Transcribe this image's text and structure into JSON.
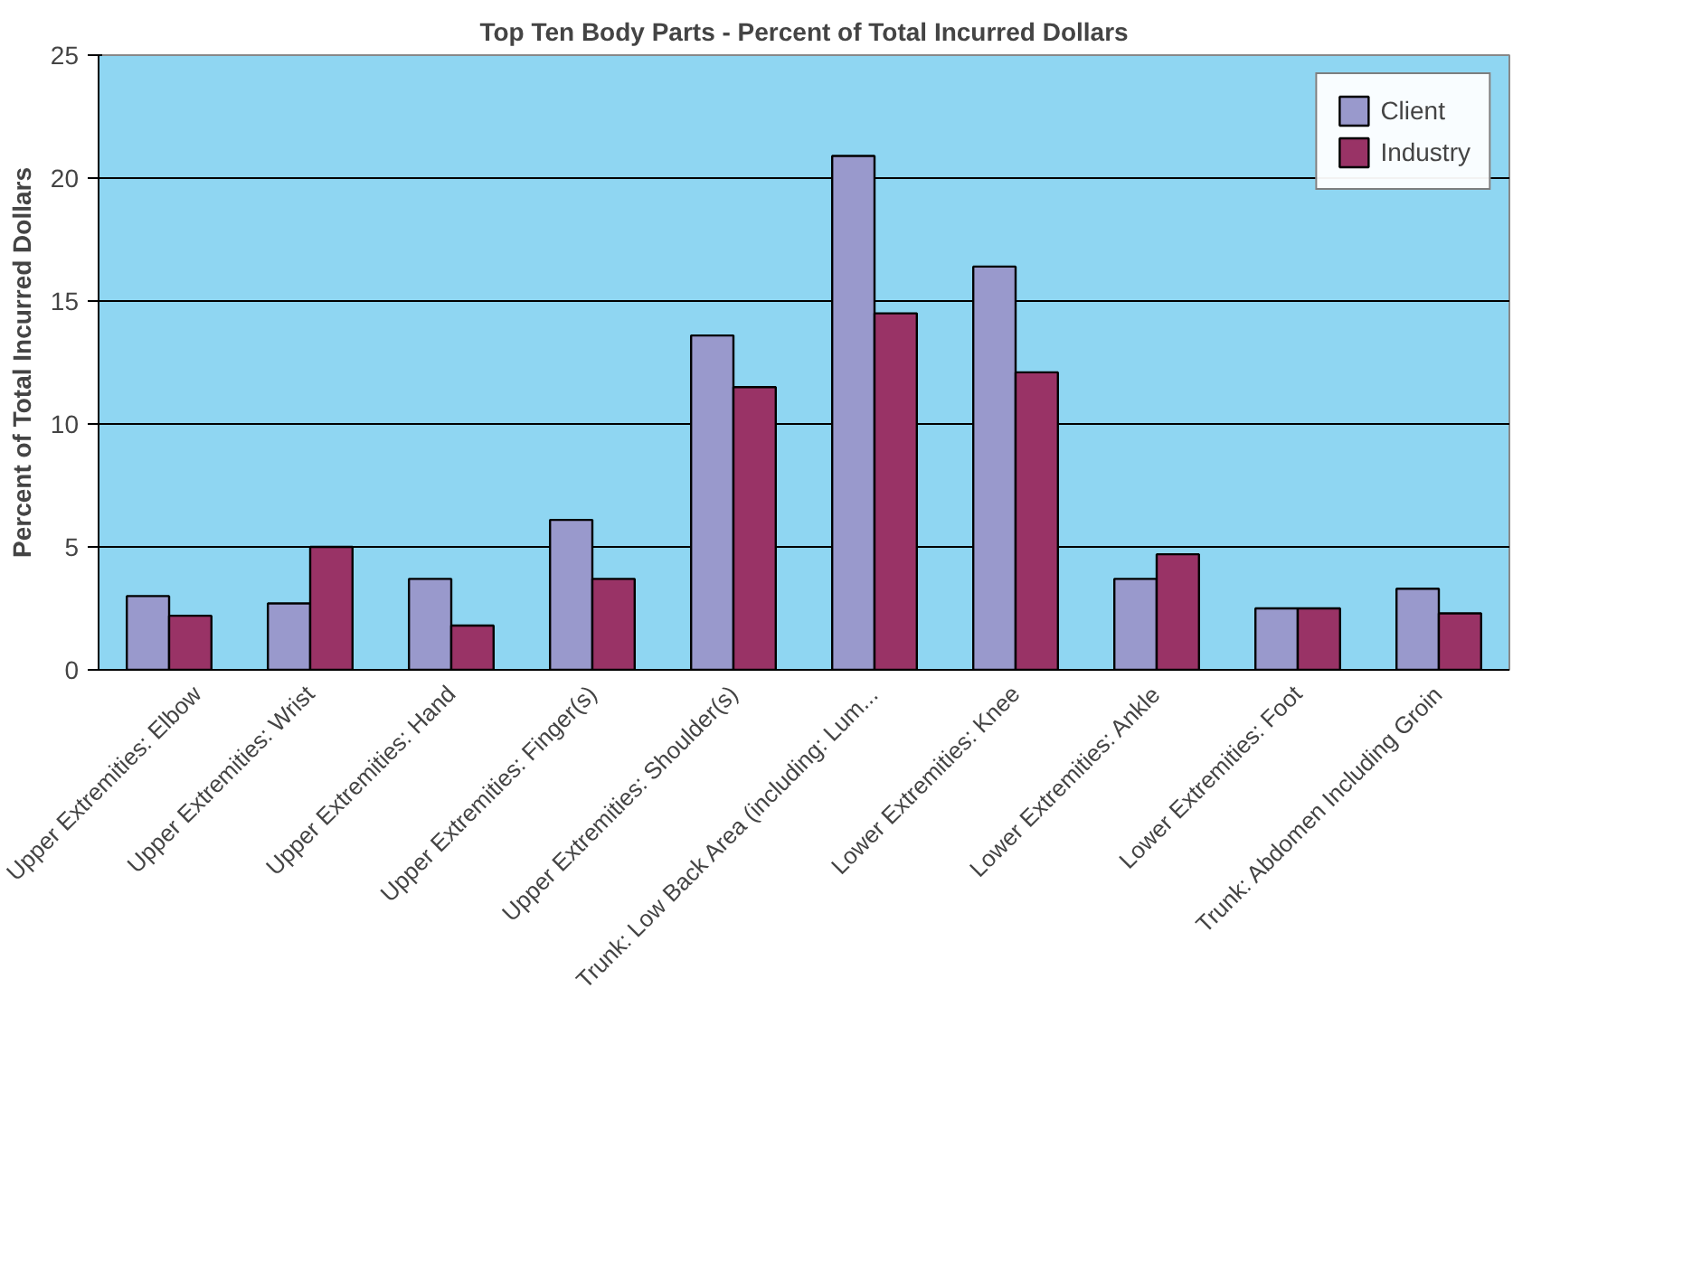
{
  "chart_data": {
    "type": "bar",
    "title": "Top Ten Body Parts - Percent of Total Incurred Dollars",
    "ylabel": "Percent of Total Incurred Dollars",
    "categories": [
      "Upper Extremities: Elbow",
      "Upper Extremities: Wrist",
      "Upper Extremities: Hand",
      "Upper Extremities: Finger(s)",
      "Upper Extremities: Shoulder(s)",
      "Trunk: Low Back Area (including: Lum...",
      "Lower Extremities: Knee",
      "Lower Extremities: Ankle",
      "Lower Extremities: Foot",
      "Trunk: Abdomen Including Groin"
    ],
    "series": [
      {
        "name": "Client",
        "color": "#9999cc",
        "values": [
          3.0,
          2.7,
          3.7,
          6.1,
          13.6,
          20.9,
          16.4,
          3.7,
          2.5,
          3.3
        ]
      },
      {
        "name": "Industry",
        "color": "#993366",
        "values": [
          2.2,
          5.0,
          1.8,
          3.7,
          11.5,
          14.5,
          12.1,
          4.7,
          2.5,
          2.3
        ]
      }
    ],
    "ylim": [
      0,
      25
    ],
    "yticks": [
      0,
      5,
      10,
      15,
      20,
      25
    ],
    "grid": "y",
    "legend": "top right"
  }
}
